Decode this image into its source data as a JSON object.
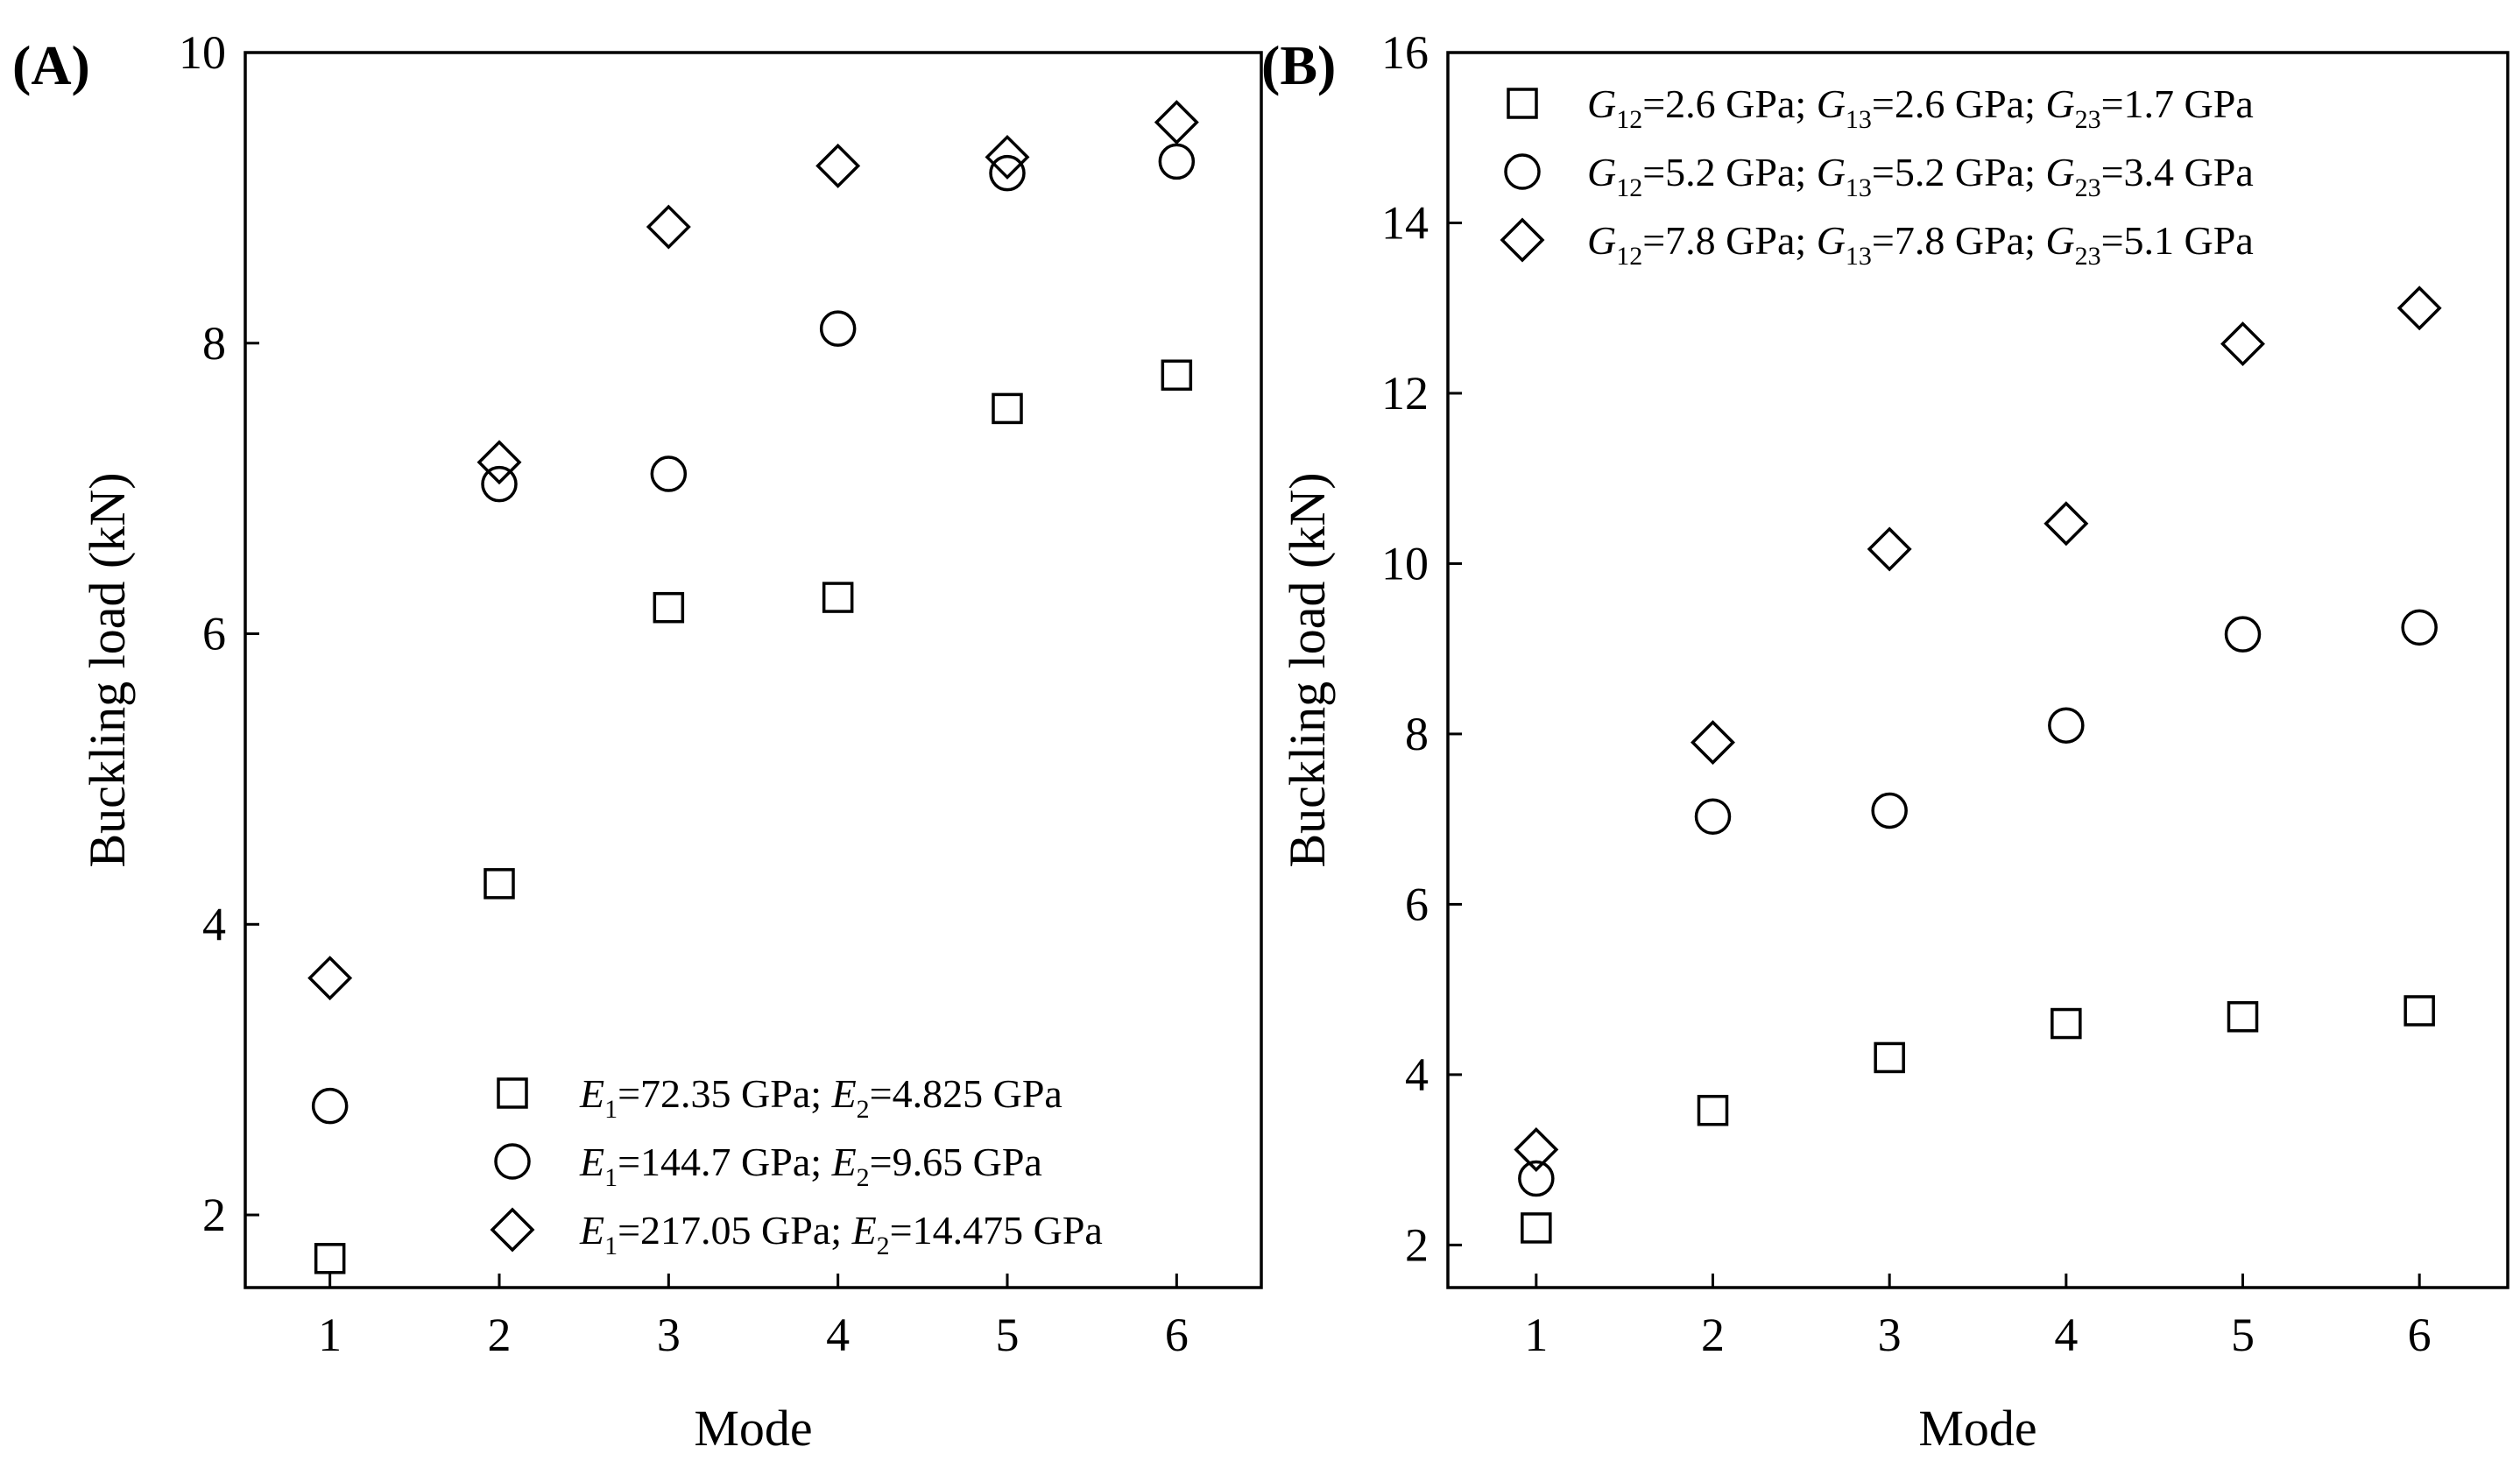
{
  "chart_data": [
    {
      "type": "scatter",
      "panel_label": "(A)",
      "xlabel": "Mode",
      "ylabel": "Buckling load (kN)",
      "xlim": [
        0.5,
        6.5
      ],
      "ylim": [
        1.5,
        10
      ],
      "x_ticks": [
        "1",
        "2",
        "3",
        "4",
        "5",
        "6"
      ],
      "y_ticks": [
        "2",
        "4",
        "6",
        "8",
        "10"
      ],
      "grid": false,
      "legend_position": "bottom-right",
      "x": [
        1,
        2,
        3,
        4,
        5,
        6
      ],
      "series": [
        {
          "marker": "square",
          "legend": [
            {
              "sym": "E",
              "sub": "1",
              "text": "=72.35 GPa; "
            },
            {
              "sym": "E",
              "sub": "2",
              "text": "=4.825 GPa"
            }
          ],
          "values": [
            1.7,
            4.28,
            6.18,
            6.25,
            7.55,
            7.78
          ]
        },
        {
          "marker": "circle",
          "legend": [
            {
              "sym": "E",
              "sub": "1",
              "text": "=144.7 GPa; "
            },
            {
              "sym": "E",
              "sub": "2",
              "text": "=9.65 GPa"
            }
          ],
          "values": [
            2.75,
            7.03,
            7.1,
            8.1,
            9.17,
            9.25
          ]
        },
        {
          "marker": "diamond",
          "legend": [
            {
              "sym": "E",
              "sub": "1",
              "text": "=217.05 GPa; "
            },
            {
              "sym": "E",
              "sub": "2",
              "text": "=14.475 GPa"
            }
          ],
          "values": [
            3.63,
            7.18,
            8.8,
            9.22,
            9.28,
            9.52
          ]
        }
      ]
    },
    {
      "type": "scatter",
      "panel_label": "(B)",
      "xlabel": "Mode",
      "ylabel": "Buckling load (kN)",
      "xlim": [
        0.5,
        6.5
      ],
      "ylim": [
        1.5,
        16
      ],
      "x_ticks": [
        "1",
        "2",
        "3",
        "4",
        "5",
        "6"
      ],
      "y_ticks": [
        "2",
        "4",
        "6",
        "8",
        "10",
        "12",
        "14",
        "16"
      ],
      "grid": false,
      "legend_position": "top-left",
      "x": [
        1,
        2,
        3,
        4,
        5,
        6
      ],
      "series": [
        {
          "marker": "square",
          "legend": [
            {
              "sym": "G",
              "sub": "12",
              "text": "=2.6 GPa; "
            },
            {
              "sym": "G",
              "sub": "13",
              "text": "=2.6 GPa; "
            },
            {
              "sym": "G",
              "sub": "23",
              "text": "=1.7 GPa"
            }
          ],
          "values": [
            2.2,
            3.58,
            4.2,
            4.6,
            4.68,
            4.75
          ]
        },
        {
          "marker": "circle",
          "legend": [
            {
              "sym": "G",
              "sub": "12",
              "text": "=5.2 GPa; "
            },
            {
              "sym": "G",
              "sub": "13",
              "text": "=5.2 GPa; "
            },
            {
              "sym": "G",
              "sub": "23",
              "text": "=3.4 GPa"
            }
          ],
          "values": [
            2.78,
            7.03,
            7.1,
            8.1,
            9.17,
            9.25
          ]
        },
        {
          "marker": "diamond",
          "legend": [
            {
              "sym": "G",
              "sub": "12",
              "text": "=7.8 GPa; "
            },
            {
              "sym": "G",
              "sub": "13",
              "text": "=7.8 GPa; "
            },
            {
              "sym": "G",
              "sub": "23",
              "text": "=5.1 GPa"
            }
          ],
          "values": [
            3.12,
            7.9,
            10.17,
            10.47,
            12.58,
            13.0
          ]
        }
      ]
    }
  ]
}
